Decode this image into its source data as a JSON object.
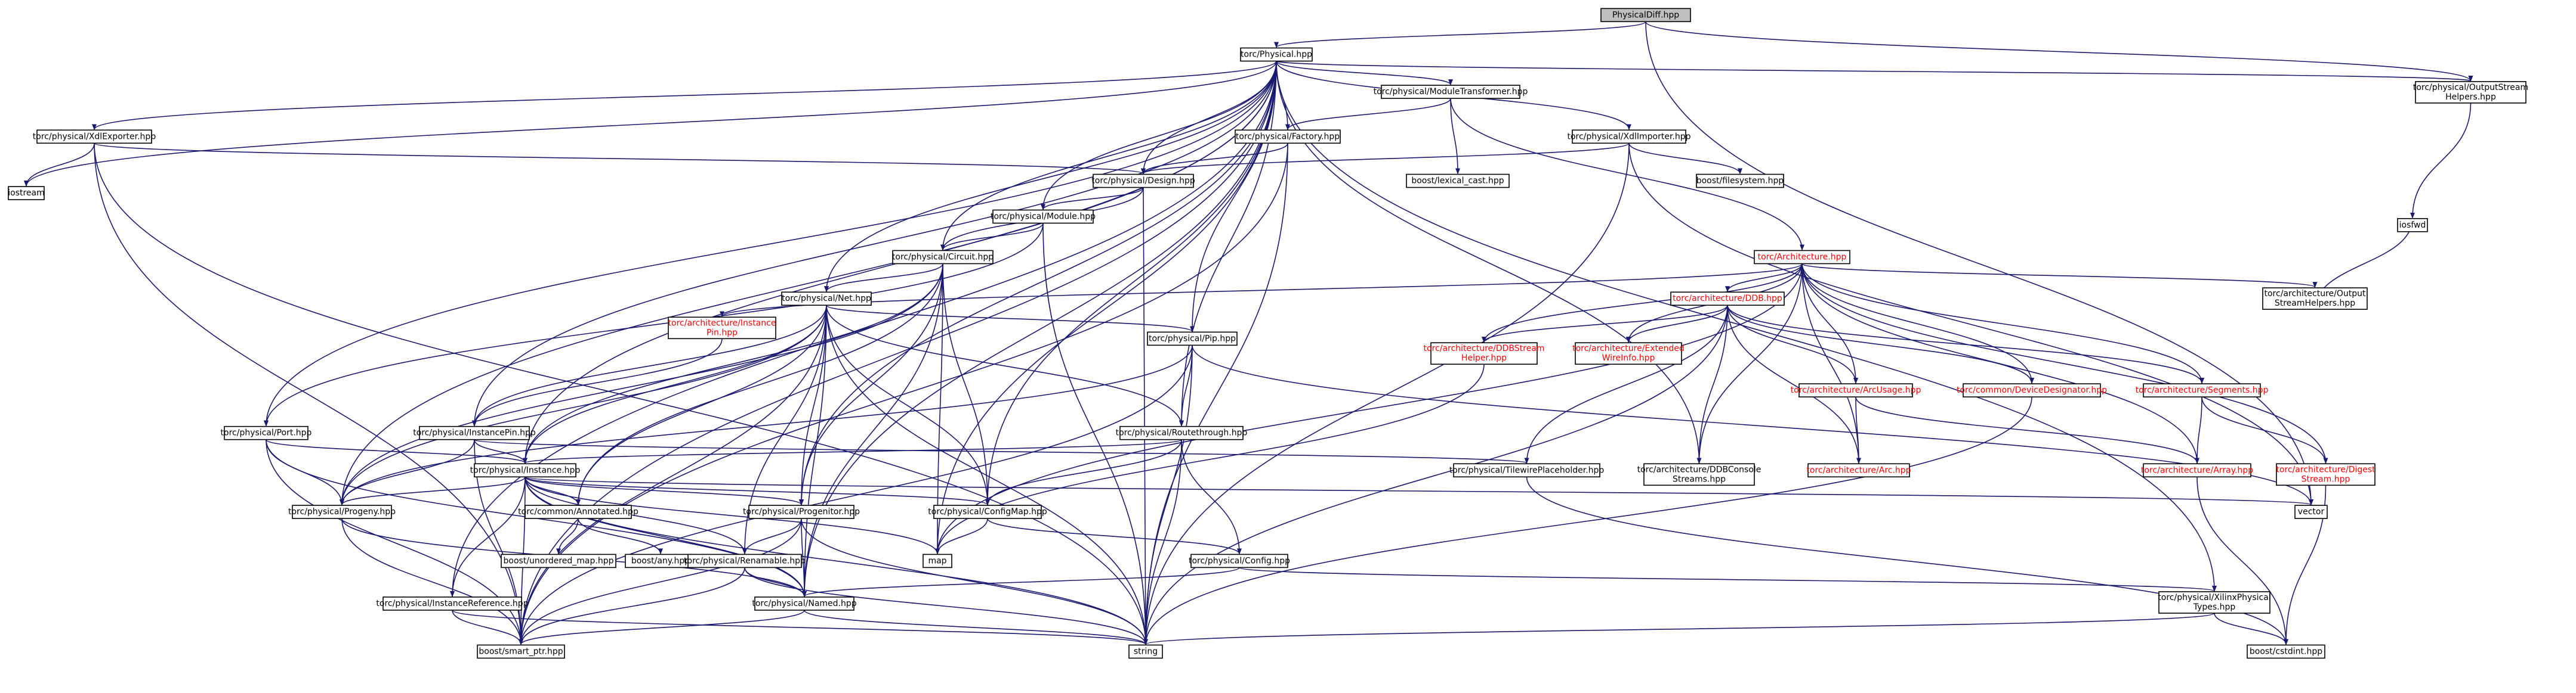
{
  "colors": {
    "edge": "#191970",
    "node_fill": "#ffffff",
    "root_fill": "#bfbfbf",
    "node_border": "#000000",
    "missing_border": "#bfbfbf",
    "text": "#000000",
    "external_text": "#ff0000"
  },
  "nodes": [
    {
      "id": "physicaldiff",
      "lines": [
        "PhysicalDiff.hpp"
      ],
      "root": true
    },
    {
      "id": "physical",
      "lines": [
        "torc/Physical.hpp"
      ]
    },
    {
      "id": "outputstream",
      "lines": [
        "torc/physical/OutputStream",
        "Helpers.hpp"
      ]
    },
    {
      "id": "moduletransformer",
      "lines": [
        "torc/physical/ModuleTransformer.hpp"
      ]
    },
    {
      "id": "factory",
      "lines": [
        "torc/physical/Factory.hpp"
      ]
    },
    {
      "id": "xdlimporter",
      "lines": [
        "torc/physical/XdlImporter.hpp"
      ]
    },
    {
      "id": "xdlexporter",
      "lines": [
        "torc/physical/XdlExporter.hpp"
      ]
    },
    {
      "id": "lexicalcast",
      "lines": [
        "boost/lexical_cast.hpp"
      ],
      "missing": true
    },
    {
      "id": "filesystem",
      "lines": [
        "boost/filesystem.hpp"
      ],
      "missing": true
    },
    {
      "id": "design",
      "lines": [
        "torc/physical/Design.hpp"
      ]
    },
    {
      "id": "iostream",
      "lines": [
        "iostream"
      ],
      "missing": true
    },
    {
      "id": "iosfwd",
      "lines": [
        "iosfwd"
      ],
      "missing": true
    },
    {
      "id": "module",
      "lines": [
        "torc/physical/Module.hpp"
      ]
    },
    {
      "id": "circuit",
      "lines": [
        "torc/physical/Circuit.hpp"
      ]
    },
    {
      "id": "architecture",
      "lines": [
        "torc/Architecture.hpp"
      ],
      "external": true
    },
    {
      "id": "net",
      "lines": [
        "torc/physical/Net.hpp"
      ]
    },
    {
      "id": "ddb",
      "lines": [
        "torc/architecture/DDB.hpp"
      ],
      "external": true
    },
    {
      "id": "archoutput",
      "lines": [
        "torc/architecture/Output",
        "StreamHelpers.hpp"
      ]
    },
    {
      "id": "instancepin_arch",
      "lines": [
        "torc/architecture/Instance",
        "Pin.hpp"
      ],
      "external": true
    },
    {
      "id": "pip",
      "lines": [
        "torc/physical/Pip.hpp"
      ]
    },
    {
      "id": "ddbstream",
      "lines": [
        "torc/architecture/DDBStream",
        "Helper.hpp"
      ],
      "external": true
    },
    {
      "id": "extendedwire",
      "lines": [
        "torc/architecture/Extended",
        "WireInfo.hpp"
      ],
      "external": true
    },
    {
      "id": "arcusage",
      "lines": [
        "torc/architecture/ArcUsage.hpp"
      ],
      "external": true
    },
    {
      "id": "devicedesignator",
      "lines": [
        "torc/common/DeviceDesignator.hpp"
      ],
      "external": true
    },
    {
      "id": "segments",
      "lines": [
        "torc/architecture/Segments.hpp"
      ],
      "external": true
    },
    {
      "id": "port",
      "lines": [
        "torc/physical/Port.hpp"
      ]
    },
    {
      "id": "instancepin",
      "lines": [
        "torc/physical/InstancePin.hpp"
      ]
    },
    {
      "id": "routethrough",
      "lines": [
        "torc/physical/Routethrough.hpp"
      ]
    },
    {
      "id": "instance",
      "lines": [
        "torc/physical/Instance.hpp"
      ]
    },
    {
      "id": "tilewire",
      "lines": [
        "torc/physical/TilewirePlaceholder.hpp"
      ]
    },
    {
      "id": "ddbconsole",
      "lines": [
        "torc/architecture/DDBConsole",
        "Streams.hpp"
      ]
    },
    {
      "id": "arc",
      "lines": [
        "torc/architecture/Arc.hpp"
      ],
      "external": true
    },
    {
      "id": "array",
      "lines": [
        "torc/architecture/Array.hpp"
      ],
      "external": true
    },
    {
      "id": "digeststream",
      "lines": [
        "torc/architecture/Digest",
        "Stream.hpp"
      ],
      "external": true
    },
    {
      "id": "progeny",
      "lines": [
        "torc/physical/Progeny.hpp"
      ]
    },
    {
      "id": "annotated",
      "lines": [
        "torc/common/Annotated.hpp"
      ]
    },
    {
      "id": "progenitor",
      "lines": [
        "torc/physical/Progenitor.hpp"
      ]
    },
    {
      "id": "configmap",
      "lines": [
        "torc/physical/ConfigMap.hpp"
      ]
    },
    {
      "id": "vector",
      "lines": [
        "vector"
      ],
      "missing": true
    },
    {
      "id": "unorderedmap",
      "lines": [
        "boost/unordered_map.hpp"
      ],
      "missing": true
    },
    {
      "id": "boostany",
      "lines": [
        "boost/any.hpp"
      ],
      "missing": true
    },
    {
      "id": "renamable",
      "lines": [
        "torc/physical/Renamable.hpp"
      ]
    },
    {
      "id": "map",
      "lines": [
        "map"
      ],
      "missing": true
    },
    {
      "id": "config",
      "lines": [
        "torc/physical/Config.hpp"
      ]
    },
    {
      "id": "instanceref",
      "lines": [
        "torc/physical/InstanceReference.hpp"
      ]
    },
    {
      "id": "named",
      "lines": [
        "torc/physical/Named.hpp"
      ]
    },
    {
      "id": "xilinxtypes",
      "lines": [
        "torc/physical/XilinxPhysical",
        "Types.hpp"
      ]
    },
    {
      "id": "smartptr",
      "lines": [
        "boost/smart_ptr.hpp"
      ],
      "missing": true
    },
    {
      "id": "string",
      "lines": [
        "string"
      ],
      "missing": true
    },
    {
      "id": "cstdint",
      "lines": [
        "boost/cstdint.hpp"
      ],
      "missing": true
    }
  ],
  "edges": [
    [
      "physicaldiff",
      "physical"
    ],
    [
      "physicaldiff",
      "outputstream"
    ],
    [
      "physicaldiff",
      "vector"
    ],
    [
      "physical",
      "outputstream"
    ],
    [
      "physical",
      "moduletransformer"
    ],
    [
      "physical",
      "factory"
    ],
    [
      "physical",
      "xdlimporter"
    ],
    [
      "physical",
      "xdlexporter"
    ],
    [
      "physical",
      "design"
    ],
    [
      "physical",
      "module"
    ],
    [
      "physical",
      "circuit"
    ],
    [
      "physical",
      "net"
    ],
    [
      "physical",
      "pip"
    ],
    [
      "physical",
      "routethrough"
    ],
    [
      "physical",
      "port"
    ],
    [
      "physical",
      "instancepin"
    ],
    [
      "physical",
      "instance"
    ],
    [
      "physical",
      "progeny"
    ],
    [
      "physical",
      "progenitor"
    ],
    [
      "physical",
      "instanceref"
    ],
    [
      "physical",
      "iostream"
    ],
    [
      "physical",
      "ddbconsole"
    ],
    [
      "physical",
      "configmap"
    ],
    [
      "physical",
      "named"
    ],
    [
      "physical",
      "xilinxtypes"
    ],
    [
      "physical",
      "map"
    ],
    [
      "physical",
      "smartptr"
    ],
    [
      "moduletransformer",
      "factory"
    ],
    [
      "moduletransformer",
      "lexicalcast"
    ],
    [
      "moduletransformer",
      "architecture"
    ],
    [
      "factory",
      "design"
    ],
    [
      "factory",
      "smartptr"
    ],
    [
      "factory",
      "string"
    ],
    [
      "xdlimporter",
      "design"
    ],
    [
      "xdlimporter",
      "filesystem"
    ],
    [
      "xdlimporter",
      "string"
    ],
    [
      "xdlimporter",
      "vector"
    ],
    [
      "xdlexporter",
      "design"
    ],
    [
      "xdlexporter",
      "iostream"
    ],
    [
      "xdlexporter",
      "smartptr"
    ],
    [
      "xdlexporter",
      "string"
    ],
    [
      "outputstream",
      "iosfwd"
    ],
    [
      "design",
      "module"
    ],
    [
      "design",
      "circuit"
    ],
    [
      "design",
      "string"
    ],
    [
      "module",
      "circuit"
    ],
    [
      "module",
      "port"
    ],
    [
      "module",
      "string"
    ],
    [
      "circuit",
      "net"
    ],
    [
      "circuit",
      "instance"
    ],
    [
      "circuit",
      "progeny"
    ],
    [
      "circuit",
      "progenitor"
    ],
    [
      "circuit",
      "configmap"
    ],
    [
      "circuit",
      "named"
    ],
    [
      "circuit",
      "annotated"
    ],
    [
      "circuit",
      "map"
    ],
    [
      "net",
      "instancepin"
    ],
    [
      "net",
      "pip"
    ],
    [
      "net",
      "routethrough"
    ],
    [
      "net",
      "progeny"
    ],
    [
      "net",
      "progenitor"
    ],
    [
      "net",
      "configmap"
    ],
    [
      "net",
      "renamable"
    ],
    [
      "net",
      "annotated"
    ],
    [
      "net",
      "named"
    ],
    [
      "net",
      "instance"
    ],
    [
      "net",
      "string"
    ],
    [
      "net",
      "smartptr"
    ],
    [
      "architecture",
      "instancepin_arch"
    ],
    [
      "architecture",
      "ddb"
    ],
    [
      "architecture",
      "archoutput"
    ],
    [
      "architecture",
      "ddbstream"
    ],
    [
      "architecture",
      "extendedwire"
    ],
    [
      "architecture",
      "arcusage"
    ],
    [
      "architecture",
      "devicedesignator"
    ],
    [
      "architecture",
      "segments"
    ],
    [
      "architecture",
      "arc"
    ],
    [
      "architecture",
      "array"
    ],
    [
      "architecture",
      "digeststream"
    ],
    [
      "architecture",
      "ddbconsole"
    ],
    [
      "architecture",
      "map"
    ],
    [
      "ddb",
      "ddbstream"
    ],
    [
      "ddb",
      "extendedwire"
    ],
    [
      "ddb",
      "arcusage"
    ],
    [
      "ddb",
      "devicedesignator"
    ],
    [
      "ddb",
      "segments"
    ],
    [
      "ddb",
      "arc"
    ],
    [
      "ddb",
      "ddbconsole"
    ],
    [
      "ddb",
      "tilewire"
    ],
    [
      "ddb",
      "string"
    ],
    [
      "archoutput",
      "iosfwd"
    ],
    [
      "instancepin_arch",
      "instancepin"
    ],
    [
      "pip",
      "routethrough"
    ],
    [
      "pip",
      "progeny"
    ],
    [
      "pip",
      "vector"
    ],
    [
      "pip",
      "string"
    ],
    [
      "pip",
      "smartptr"
    ],
    [
      "ddbstream",
      "map"
    ],
    [
      "arcusage",
      "arc"
    ],
    [
      "arcusage",
      "array"
    ],
    [
      "segments",
      "array"
    ],
    [
      "segments",
      "digeststream"
    ],
    [
      "devicedesignator",
      "string"
    ],
    [
      "port",
      "instance"
    ],
    [
      "port",
      "progeny"
    ],
    [
      "port",
      "named"
    ],
    [
      "port",
      "smartptr"
    ],
    [
      "instancepin",
      "instance"
    ],
    [
      "instancepin",
      "progeny"
    ],
    [
      "instancepin",
      "tilewire"
    ],
    [
      "instancepin",
      "smartptr"
    ],
    [
      "routethrough",
      "instance"
    ],
    [
      "routethrough",
      "configmap"
    ],
    [
      "routethrough",
      "config"
    ],
    [
      "routethrough",
      "string"
    ],
    [
      "instance",
      "progeny"
    ],
    [
      "instance",
      "annotated"
    ],
    [
      "instance",
      "progenitor"
    ],
    [
      "instance",
      "configmap"
    ],
    [
      "instance",
      "renamable"
    ],
    [
      "instance",
      "instanceref"
    ],
    [
      "instance",
      "named"
    ],
    [
      "instance",
      "vector"
    ],
    [
      "instance",
      "map"
    ],
    [
      "instance",
      "string"
    ],
    [
      "instance",
      "smartptr"
    ],
    [
      "tilewire",
      "cstdint"
    ],
    [
      "array",
      "cstdint"
    ],
    [
      "digeststream",
      "cstdint"
    ],
    [
      "progeny",
      "named"
    ],
    [
      "progeny",
      "smartptr"
    ],
    [
      "annotated",
      "unorderedmap"
    ],
    [
      "annotated",
      "boostany"
    ],
    [
      "progenitor",
      "renamable"
    ],
    [
      "progenitor",
      "named"
    ],
    [
      "progenitor",
      "smartptr"
    ],
    [
      "progenitor",
      "string"
    ],
    [
      "configmap",
      "config"
    ],
    [
      "configmap",
      "map"
    ],
    [
      "config",
      "named"
    ],
    [
      "config",
      "xilinxtypes"
    ],
    [
      "renamable",
      "named"
    ],
    [
      "renamable",
      "smartptr"
    ],
    [
      "renamable",
      "string"
    ],
    [
      "instanceref",
      "smartptr"
    ],
    [
      "instanceref",
      "string"
    ],
    [
      "named",
      "string"
    ],
    [
      "named",
      "smartptr"
    ],
    [
      "xilinxtypes",
      "string"
    ],
    [
      "xilinxtypes",
      "cstdint"
    ]
  ]
}
